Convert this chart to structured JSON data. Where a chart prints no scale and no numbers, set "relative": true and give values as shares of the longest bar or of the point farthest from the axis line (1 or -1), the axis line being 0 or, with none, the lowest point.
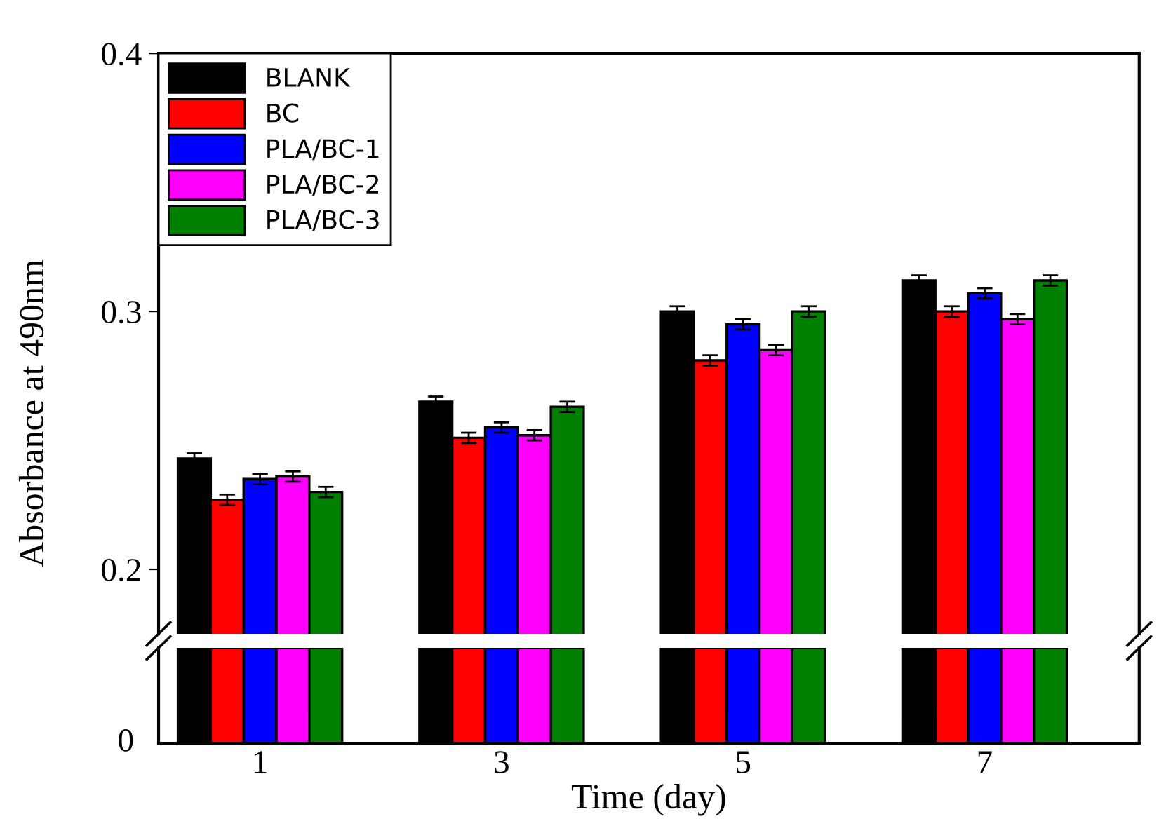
{
  "chart_data": [
    {
      "type": "bar",
      "ylabel": "Absorbance at 490nm",
      "categories": [
        "1",
        "3",
        "5",
        "7"
      ],
      "ylim": [
        0.175,
        0.4
      ],
      "yticks": [
        0.2,
        0.3,
        0.4
      ],
      "tick_labels": "y",
      "legend": "top left",
      "grid": false,
      "series": [
        {
          "name": "BLANK",
          "color": "#000000",
          "values": [
            0.243,
            0.265,
            0.3,
            0.312
          ],
          "errors": [
            0.002,
            0.002,
            0.002,
            0.002
          ]
        },
        {
          "name": "BC",
          "color": "#ff0000",
          "values": [
            0.227,
            0.251,
            0.281,
            0.3
          ],
          "errors": [
            0.002,
            0.002,
            0.002,
            0.002
          ]
        },
        {
          "name": "PLA/BC-1",
          "color": "#0000ff",
          "values": [
            0.235,
            0.255,
            0.295,
            0.307
          ],
          "errors": [
            0.002,
            0.002,
            0.002,
            0.002
          ]
        },
        {
          "name": "PLA/BC-2",
          "color": "#ff00ff",
          "values": [
            0.236,
            0.252,
            0.285,
            0.297
          ],
          "errors": [
            0.002,
            0.002,
            0.002,
            0.002
          ]
        },
        {
          "name": "PLA/BC-3",
          "color": "#008000",
          "values": [
            0.23,
            0.263,
            0.3,
            0.312
          ],
          "errors": [
            0.002,
            0.002,
            0.002,
            0.002
          ]
        }
      ]
    },
    {
      "type": "bar",
      "xlabel": "Time (day)",
      "categories": [
        "1",
        "3",
        "5",
        "7"
      ],
      "relative": true,
      "annotations": [
        "0"
      ],
      "grid": false,
      "series": [
        {
          "color": "#000000",
          "values": [
            1,
            1,
            1,
            1
          ]
        },
        {
          "color": "#ff0000",
          "values": [
            1,
            1,
            1,
            1
          ]
        },
        {
          "color": "#0000ff",
          "values": [
            1,
            1,
            1,
            1
          ]
        },
        {
          "color": "#ff00ff",
          "values": [
            1,
            1,
            1,
            1
          ]
        },
        {
          "color": "#008000",
          "values": [
            1,
            1,
            1,
            1
          ]
        }
      ]
    }
  ]
}
